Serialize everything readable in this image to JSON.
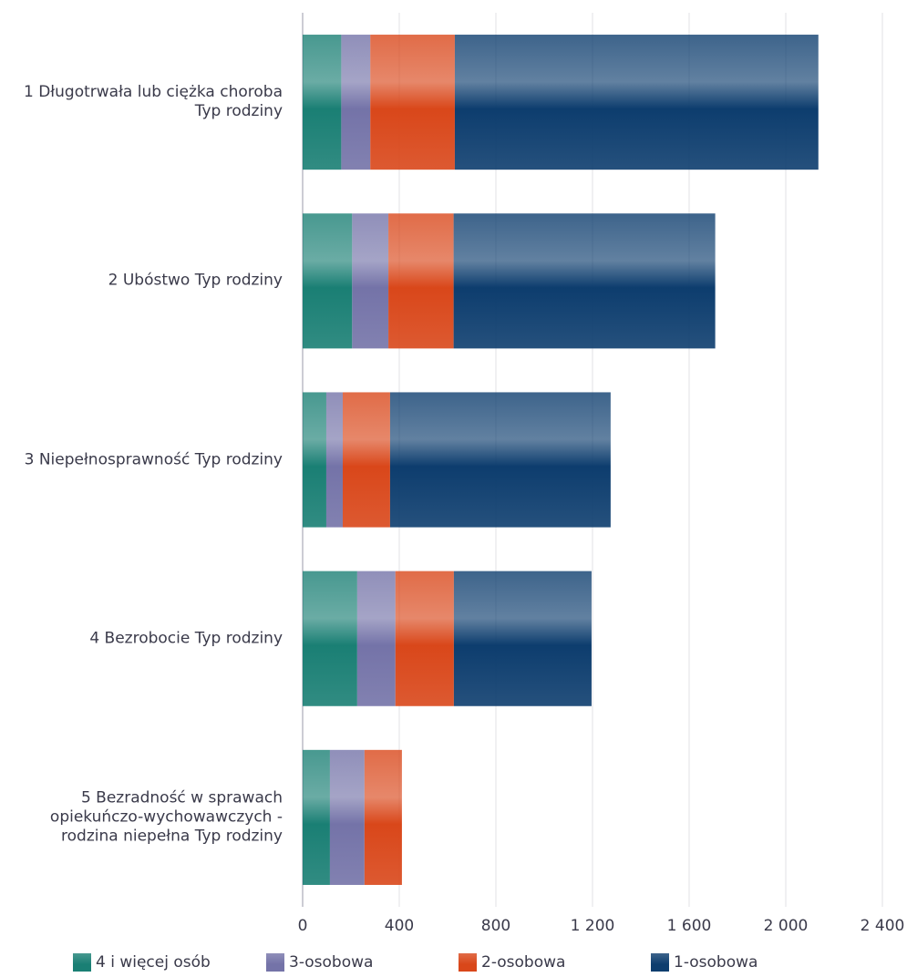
{
  "chart_data": {
    "type": "bar",
    "orientation": "horizontal",
    "stacked": true,
    "categories": [
      "1 Długotrwała lub ciężka choroba Typ rodziny",
      "2 Ubóstwo Typ rodziny",
      "3 Niepełnosprawność Typ rodziny",
      "4 Bezrobocie Typ rodziny",
      "5 Bezradność w sprawach opiekuńczo-wychowawczych - rodzina niepełna Typ rodziny"
    ],
    "series": [
      {
        "name": "4 i więcej osób",
        "color": "#1a7f74",
        "values": [
          160,
          205,
          98,
          226,
          113
        ]
      },
      {
        "name": "3-osobowa",
        "color": "#7473a8",
        "values": [
          120,
          150,
          68,
          158,
          143
        ]
      },
      {
        "name": "2-osobowa",
        "color": "#d9471a",
        "values": [
          350,
          270,
          196,
          242,
          155
        ]
      },
      {
        "name": "1-osobowa",
        "color": "#0d3d6e",
        "values": [
          1505,
          1083,
          913,
          570,
          0
        ]
      }
    ],
    "xlim": [
      0,
      2400
    ],
    "xticks": [
      0,
      400,
      800,
      {
        "value": 1200,
        "label": "1 200"
      },
      {
        "value": 1600,
        "label": "1 600"
      },
      {
        "value": 2000,
        "label": "2 000"
      },
      {
        "value": 2400,
        "label": "2 400"
      }
    ],
    "grid": true,
    "legend": "bottom"
  }
}
